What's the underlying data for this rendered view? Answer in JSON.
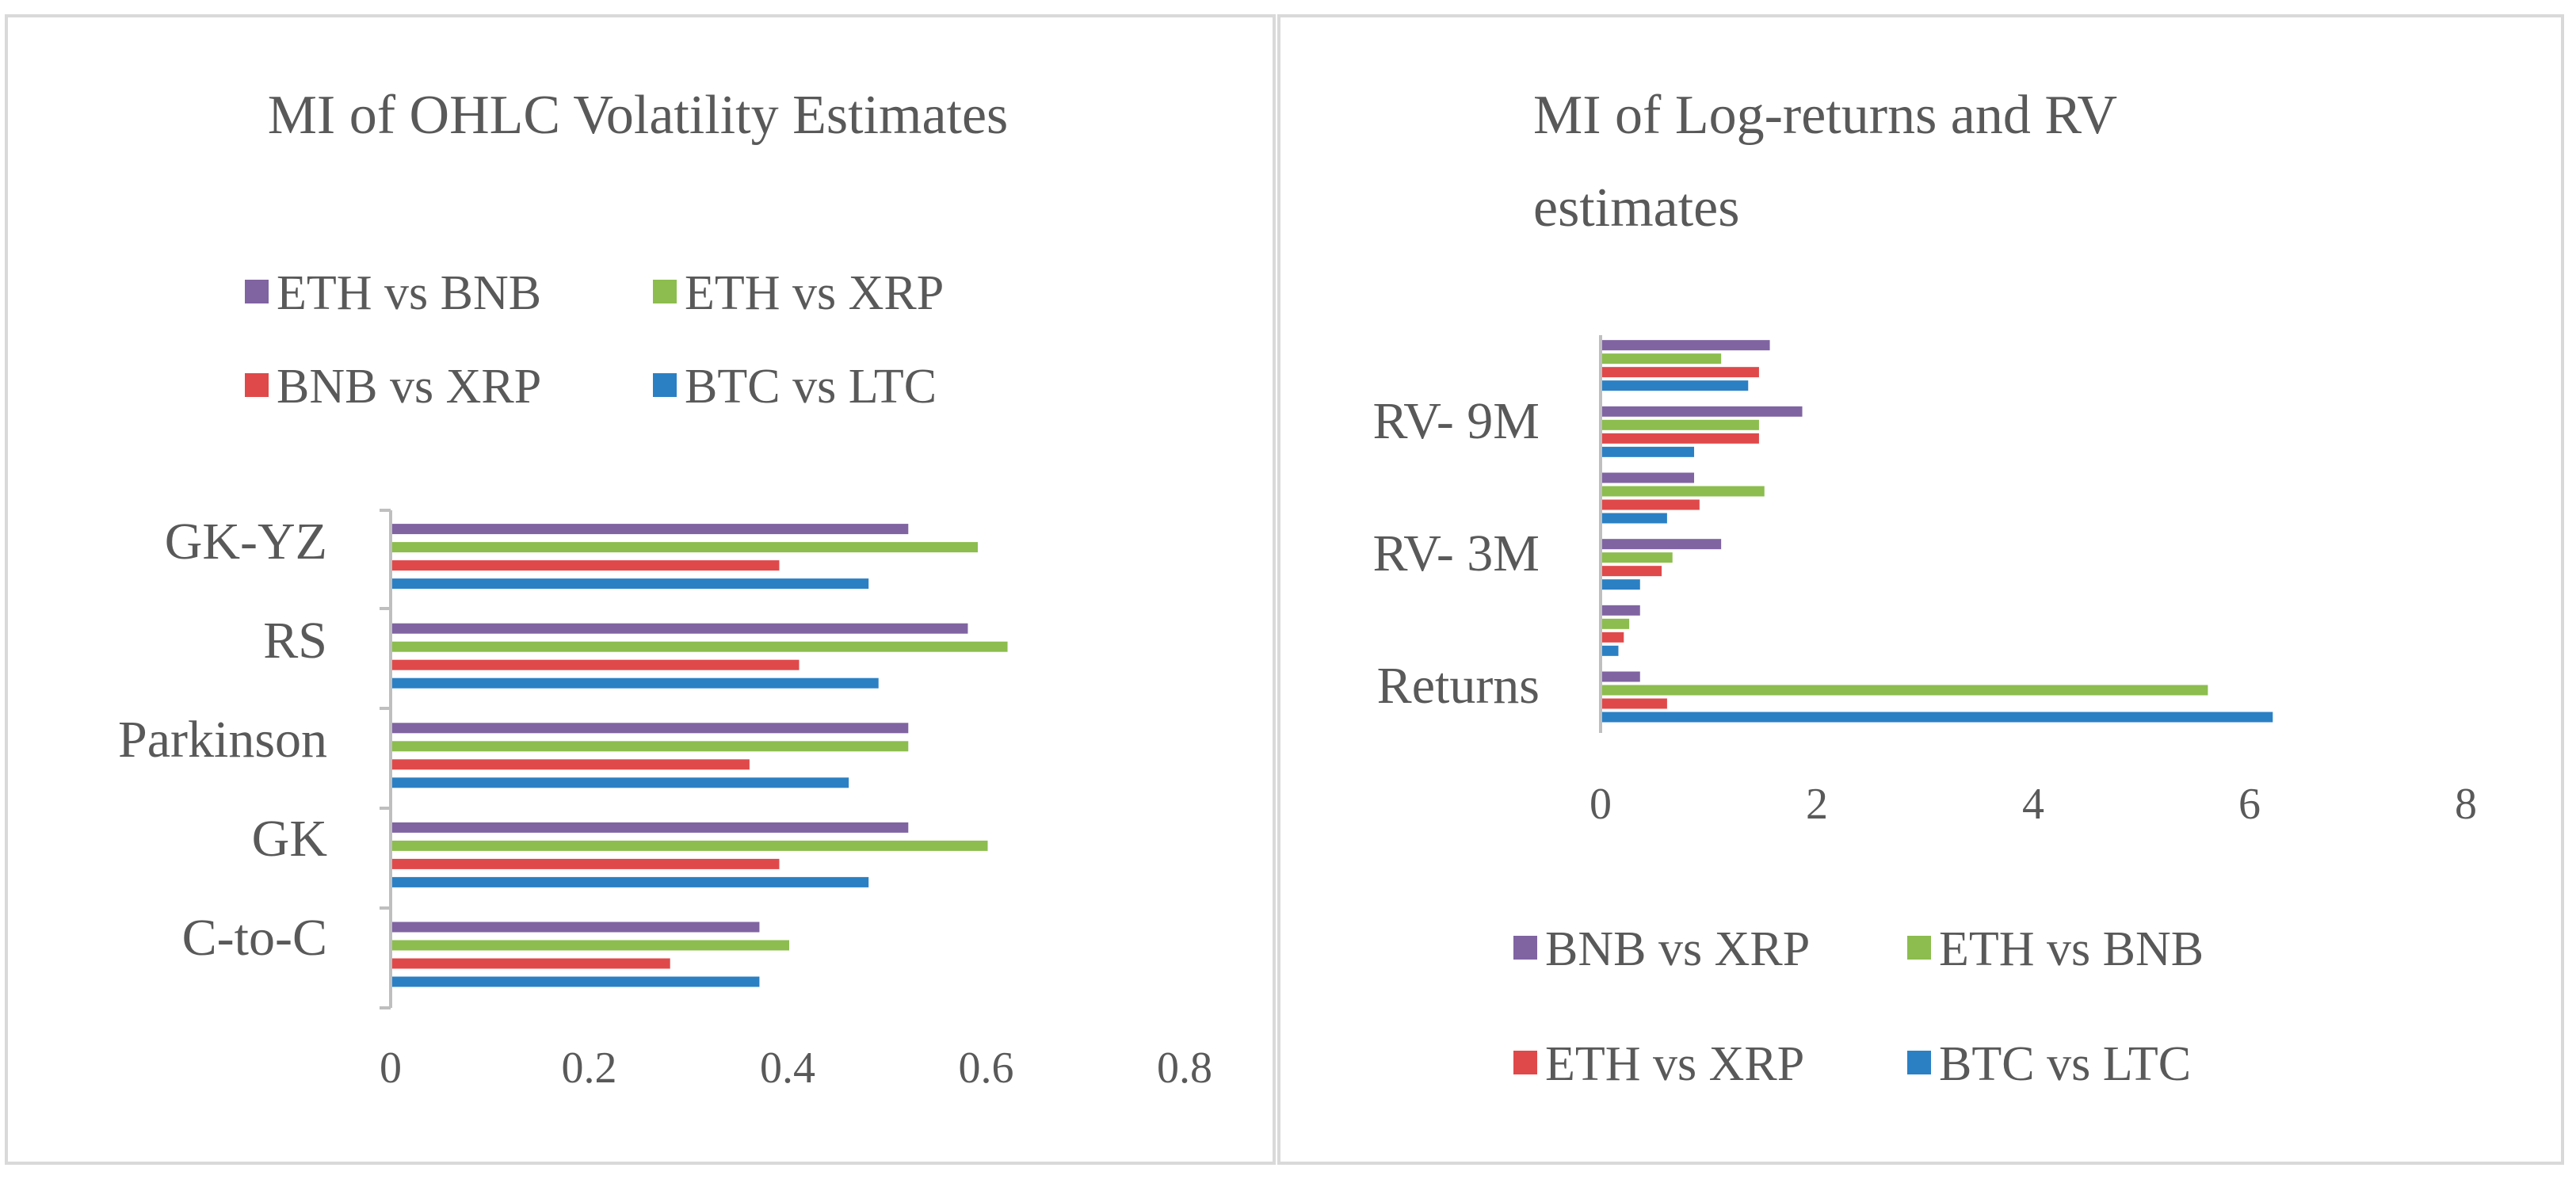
{
  "chart_data": [
    {
      "type": "bar",
      "orientation": "horizontal",
      "title": "MI of OHLC Volatility Estimates",
      "categories": [
        "C-to-C",
        "GK",
        "Parkinson",
        "RS",
        "GK-YZ"
      ],
      "xlim": [
        0,
        0.8
      ],
      "xticks": [
        "0",
        "0.2",
        "0.4",
        "0.6",
        "0.8"
      ],
      "legend_position": "top",
      "legend": [
        {
          "name": "ETH vs BNB",
          "color": "#8064a2"
        },
        {
          "name": "ETH vs XRP",
          "color": "#8cbd4e"
        },
        {
          "name": "BNB vs XRP",
          "color": "#e0494a"
        },
        {
          "name": "BTC vs LTC",
          "color": "#2b80c4"
        }
      ],
      "series": [
        {
          "name": "BTC vs LTC",
          "color": "#2b80c4",
          "values": [
            0.37,
            0.48,
            0.46,
            0.49,
            0.48
          ]
        },
        {
          "name": "BNB vs XRP",
          "color": "#e0494a",
          "values": [
            0.28,
            0.39,
            0.36,
            0.41,
            0.39
          ]
        },
        {
          "name": "ETH vs XRP",
          "color": "#8cbd4e",
          "values": [
            0.4,
            0.6,
            0.52,
            0.62,
            0.59
          ]
        },
        {
          "name": "ETH vs BNB",
          "color": "#8064a2",
          "values": [
            0.37,
            0.52,
            0.52,
            0.58,
            0.52
          ]
        }
      ]
    },
    {
      "type": "bar",
      "orientation": "horizontal",
      "title": "MI of Log-returns and RV estimates",
      "title_lines": [
        "MI of Log-returns and RV",
        "estimates"
      ],
      "categories": [
        "Returns",
        "",
        "RV- 3M",
        "",
        "RV- 9M",
        ""
      ],
      "xlim": [
        0,
        8
      ],
      "xticks": [
        "0",
        "2",
        "4",
        "6",
        "8"
      ],
      "legend_position": "bottom",
      "legend": [
        {
          "name": "BNB vs XRP",
          "color": "#8064a2"
        },
        {
          "name": "ETH vs BNB",
          "color": "#8cbd4e"
        },
        {
          "name": "ETH vs XRP",
          "color": "#e0494a"
        },
        {
          "name": "BTC vs LTC",
          "color": "#2b80c4"
        }
      ],
      "series": [
        {
          "name": "BTC vs LTC",
          "color": "#2b80c4",
          "values": [
            6.2,
            0.15,
            0.35,
            0.6,
            0.85,
            1.35
          ]
        },
        {
          "name": "ETH vs XRP",
          "color": "#e0494a",
          "values": [
            0.6,
            0.2,
            0.55,
            0.9,
            1.45,
            1.45
          ]
        },
        {
          "name": "ETH vs BNB",
          "color": "#8cbd4e",
          "values": [
            5.6,
            0.25,
            0.65,
            1.5,
            1.45,
            1.1
          ]
        },
        {
          "name": "BNB vs XRP",
          "color": "#8064a2",
          "values": [
            0.35,
            0.35,
            1.1,
            0.85,
            1.85,
            1.55
          ]
        }
      ]
    }
  ]
}
